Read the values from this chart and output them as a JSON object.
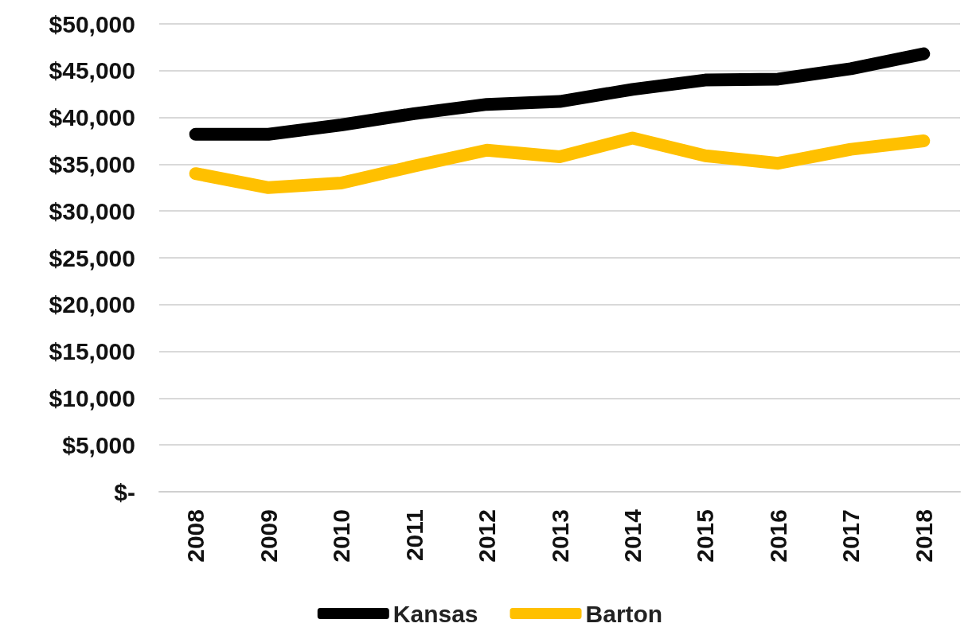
{
  "chart_data": {
    "type": "line",
    "categories": [
      "2008",
      "2009",
      "2010",
      "2011",
      "2012",
      "2013",
      "2014",
      "2015",
      "2016",
      "2017",
      "2018"
    ],
    "series": [
      {
        "name": "Kansas",
        "color": "#000000",
        "values": [
          38200,
          38200,
          39200,
          40400,
          41400,
          41700,
          43000,
          44000,
          44100,
          45200,
          46800
        ]
      },
      {
        "name": "Barton",
        "color": "#ffc000",
        "values": [
          34000,
          32500,
          33000,
          34800,
          36500,
          35800,
          37800,
          35900,
          35100,
          36600,
          37500
        ]
      }
    ],
    "ylim": [
      0,
      50000
    ],
    "yticks": [
      {
        "value": 0,
        "label": "$-"
      },
      {
        "value": 5000,
        "label": "$5,000"
      },
      {
        "value": 10000,
        "label": "$10,000"
      },
      {
        "value": 15000,
        "label": "$15,000"
      },
      {
        "value": 20000,
        "label": "$20,000"
      },
      {
        "value": 25000,
        "label": "$25,000"
      },
      {
        "value": 30000,
        "label": "$30,000"
      },
      {
        "value": 35000,
        "label": "$35,000"
      },
      {
        "value": 40000,
        "label": "$40,000"
      },
      {
        "value": 45000,
        "label": "$45,000"
      },
      {
        "value": 50000,
        "label": "$50,000"
      }
    ],
    "grid": "y",
    "legend": "bottom",
    "line_style": "solid"
  }
}
